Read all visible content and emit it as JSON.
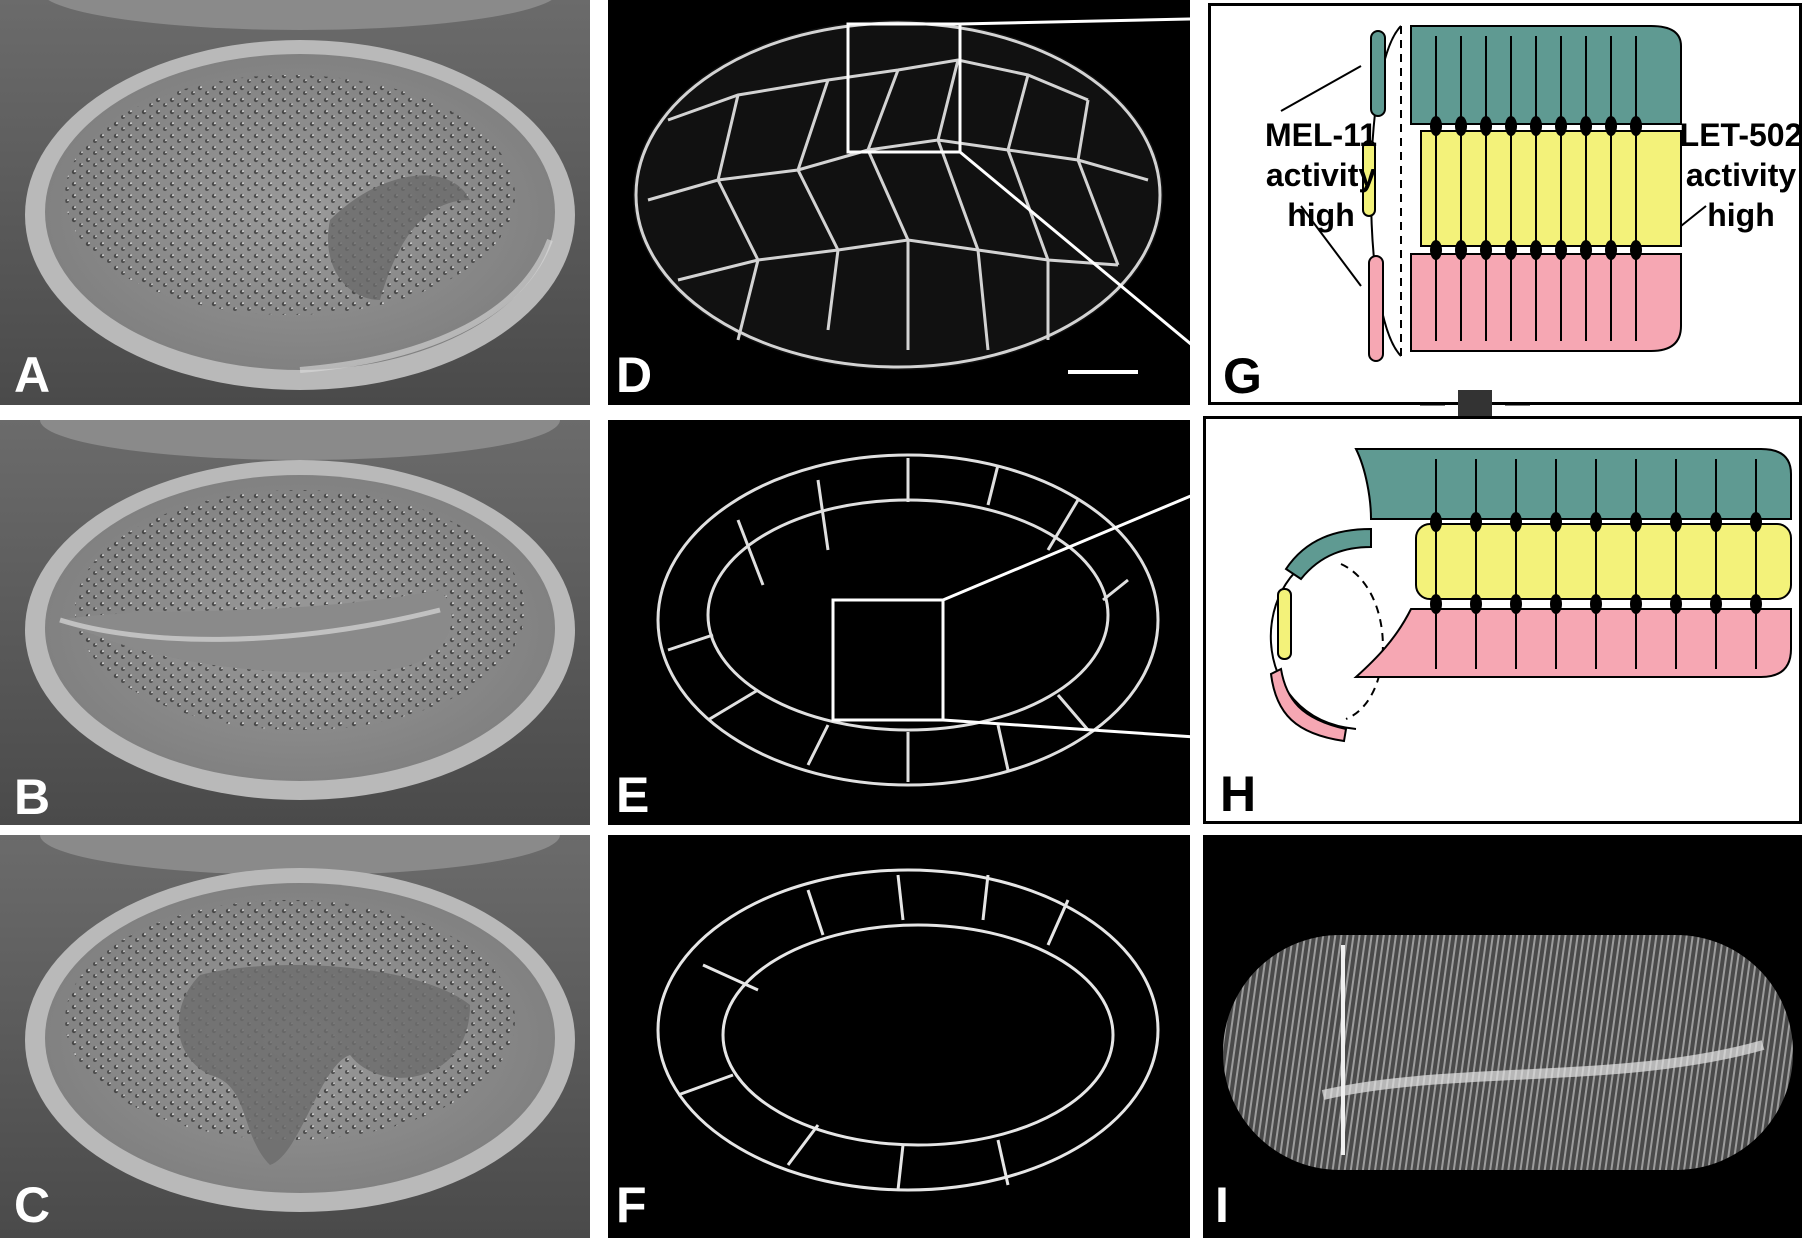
{
  "panels": {
    "a": {
      "label": "A"
    },
    "b": {
      "label": "B"
    },
    "c": {
      "label": "C"
    },
    "d": {
      "label": "D"
    },
    "e": {
      "label": "E"
    },
    "f": {
      "label": "F"
    },
    "g": {
      "label": "G"
    },
    "h": {
      "label": "H"
    },
    "i": {
      "label": "I"
    }
  },
  "diagram": {
    "left_label": [
      "MEL-11",
      "activity",
      "high"
    ],
    "right_label": [
      "LET-502",
      "activity",
      "high"
    ]
  },
  "colors": {
    "dorsal": "#5f9a92",
    "lateral": "#f3f27a",
    "ventral": "#f6a7b3"
  }
}
